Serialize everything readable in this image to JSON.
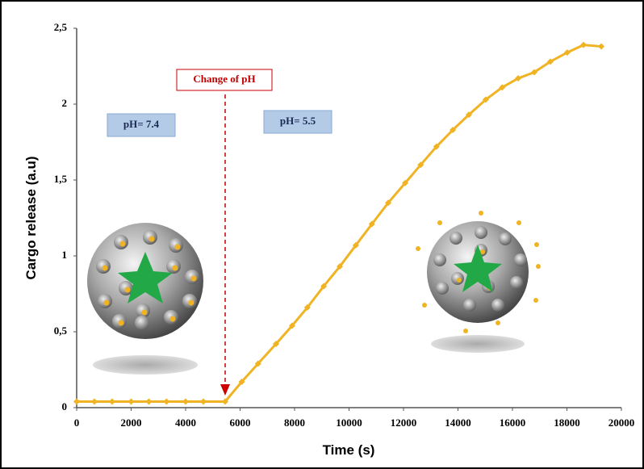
{
  "chart_data": {
    "type": "line",
    "x_label": "Time (s)",
    "y_label": "Cargo release (a.u)",
    "x": [
      0,
      650,
      1300,
      2000,
      2650,
      3300,
      4000,
      4650,
      5450,
      6060,
      6660,
      7320,
      7910,
      8470,
      9070,
      9660,
      10250,
      10840,
      11440,
      12060,
      12630,
      13210,
      13810,
      14400,
      15020,
      15620,
      16210,
      16800,
      17390,
      18010,
      18610,
      19260
    ],
    "values": [
      0.04,
      0.04,
      0.04,
      0.04,
      0.04,
      0.04,
      0.04,
      0.04,
      0.04,
      0.17,
      0.29,
      0.42,
      0.54,
      0.66,
      0.8,
      0.93,
      1.07,
      1.21,
      1.35,
      1.48,
      1.6,
      1.72,
      1.83,
      1.93,
      2.03,
      2.11,
      2.17,
      2.21,
      2.28,
      2.34,
      2.39,
      2.38
    ],
    "color": "#f0b323",
    "xlim": [
      0,
      20000
    ],
    "xticks": [
      0,
      2000,
      4000,
      6000,
      8000,
      10000,
      12000,
      14000,
      16000,
      18000,
      20000
    ],
    "ylim": [
      0,
      2.5
    ],
    "yticks": [
      0,
      {
        "value": 0.5,
        "label": "0,5"
      },
      1,
      {
        "value": 1.5,
        "label": "1,5"
      },
      2,
      {
        "value": 2.5,
        "label": "2,5"
      }
    ],
    "grid": false,
    "annotations": [
      "Change of pH",
      "pH= 7.4",
      "pH= 5.5"
    ]
  }
}
